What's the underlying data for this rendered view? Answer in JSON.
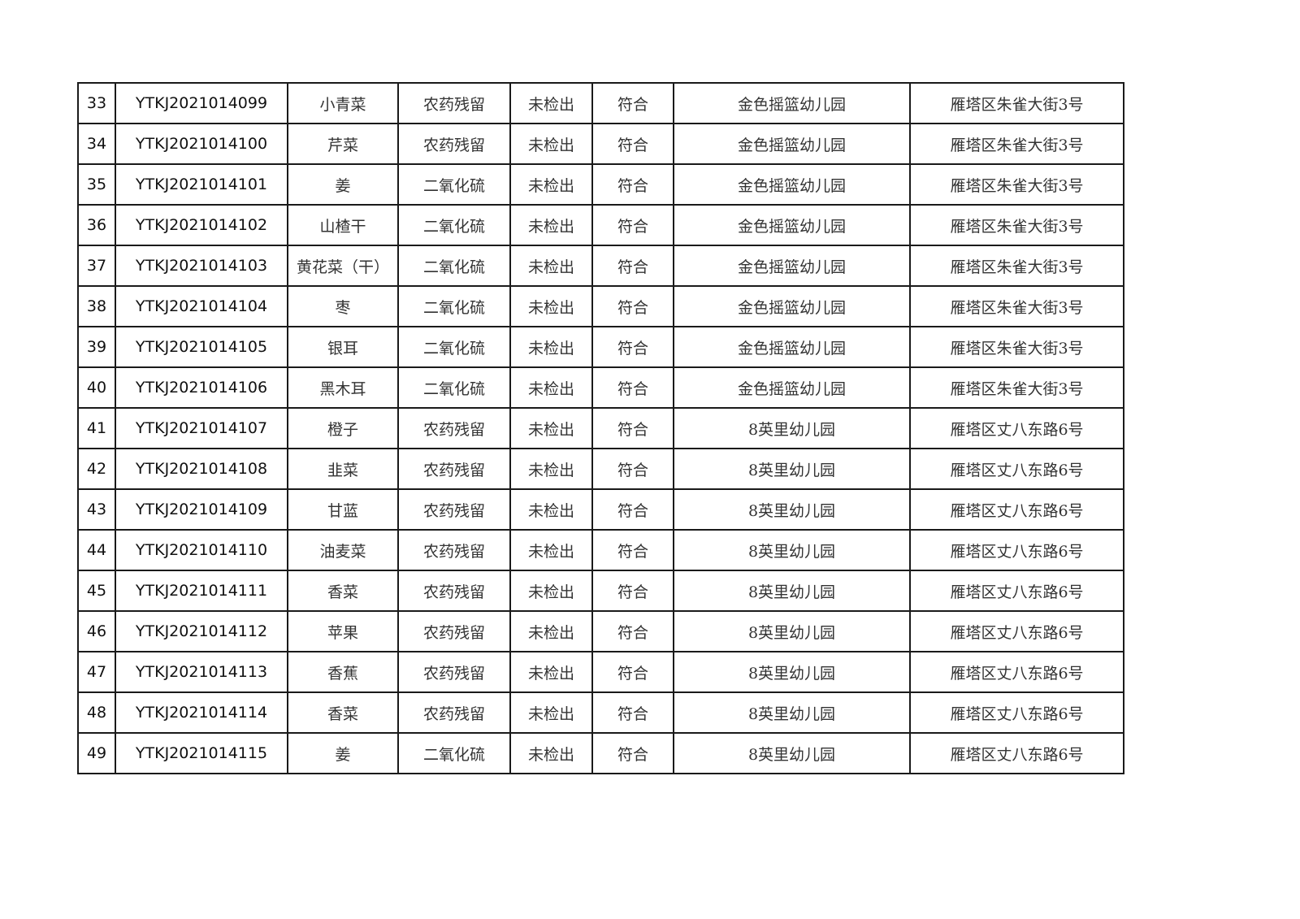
{
  "table": {
    "rows": [
      [
        "33",
        "YTKJ2021014099",
        "小青菜",
        "农药残留",
        "未检出",
        "符合",
        "金色摇篮幼儿园",
        "雁塔区朱雀大街3号"
      ],
      [
        "34",
        "YTKJ2021014100",
        "芹菜",
        "农药残留",
        "未检出",
        "符合",
        "金色摇篮幼儿园",
        "雁塔区朱雀大街3号"
      ],
      [
        "35",
        "YTKJ2021014101",
        "姜",
        "二氧化硫",
        "未检出",
        "符合",
        "金色摇篮幼儿园",
        "雁塔区朱雀大街3号"
      ],
      [
        "36",
        "YTKJ2021014102",
        "山楂干",
        "二氧化硫",
        "未检出",
        "符合",
        "金色摇篮幼儿园",
        "雁塔区朱雀大街3号"
      ],
      [
        "37",
        "YTKJ2021014103",
        "黄花菜（干）",
        "二氧化硫",
        "未检出",
        "符合",
        "金色摇篮幼儿园",
        "雁塔区朱雀大街3号"
      ],
      [
        "38",
        "YTKJ2021014104",
        "枣",
        "二氧化硫",
        "未检出",
        "符合",
        "金色摇篮幼儿园",
        "雁塔区朱雀大街3号"
      ],
      [
        "39",
        "YTKJ2021014105",
        "银耳",
        "二氧化硫",
        "未检出",
        "符合",
        "金色摇篮幼儿园",
        "雁塔区朱雀大街3号"
      ],
      [
        "40",
        "YTKJ2021014106",
        "黑木耳",
        "二氧化硫",
        "未检出",
        "符合",
        "金色摇篮幼儿园",
        "雁塔区朱雀大街3号"
      ],
      [
        "41",
        "YTKJ2021014107",
        "橙子",
        "农药残留",
        "未检出",
        "符合",
        "8英里幼儿园",
        "雁塔区丈八东路6号"
      ],
      [
        "42",
        "YTKJ2021014108",
        "韭菜",
        "农药残留",
        "未检出",
        "符合",
        "8英里幼儿园",
        "雁塔区丈八东路6号"
      ],
      [
        "43",
        "YTKJ2021014109",
        "甘蓝",
        "农药残留",
        "未检出",
        "符合",
        "8英里幼儿园",
        "雁塔区丈八东路6号"
      ],
      [
        "44",
        "YTKJ2021014110",
        "油麦菜",
        "农药残留",
        "未检出",
        "符合",
        "8英里幼儿园",
        "雁塔区丈八东路6号"
      ],
      [
        "45",
        "YTKJ2021014111",
        "香菜",
        "农药残留",
        "未检出",
        "符合",
        "8英里幼儿园",
        "雁塔区丈八东路6号"
      ],
      [
        "46",
        "YTKJ2021014112",
        "苹果",
        "农药残留",
        "未检出",
        "符合",
        "8英里幼儿园",
        "雁塔区丈八东路6号"
      ],
      [
        "47",
        "YTKJ2021014113",
        "香蕉",
        "农药残留",
        "未检出",
        "符合",
        "8英里幼儿园",
        "雁塔区丈八东路6号"
      ],
      [
        "48",
        "YTKJ2021014114",
        "香菜",
        "农药残留",
        "未检出",
        "符合",
        "8英里幼儿园",
        "雁塔区丈八东路6号"
      ],
      [
        "49",
        "YTKJ2021014115",
        "姜",
        "二氧化硫",
        "未检出",
        "符合",
        "8英里幼儿园",
        "雁塔区丈八东路6号"
      ]
    ]
  }
}
